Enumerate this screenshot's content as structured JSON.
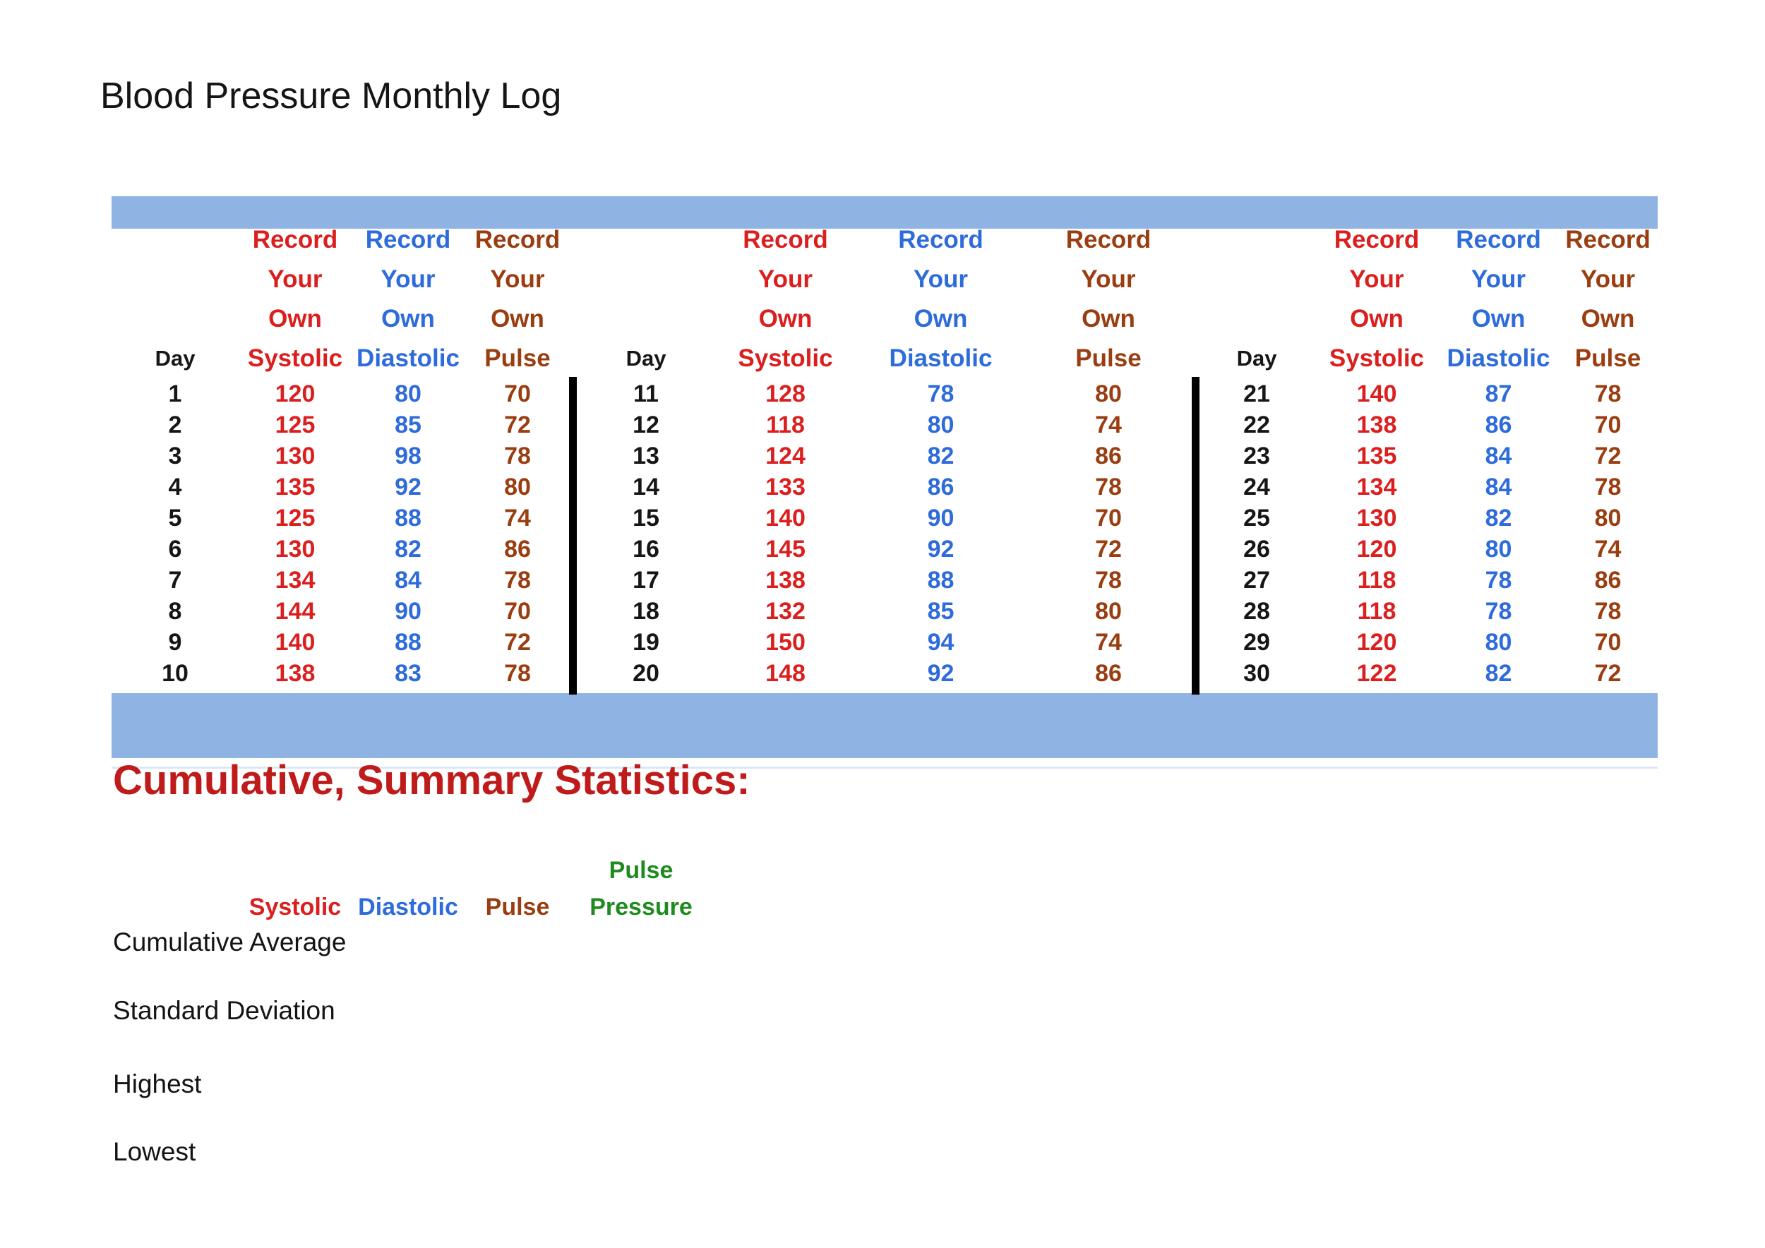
{
  "title": "Blood Pressure Monthly Log",
  "colors": {
    "banner_blue": "#8FB4E3",
    "systolic_red": "#DB1F1F",
    "diastolic_blue": "#2E6BDB",
    "pulse_brown": "#9A3D10",
    "pulse_pressure_green": "#1F8A1F",
    "summary_heading_red": "#C01B1B",
    "divider_black": "#000000"
  },
  "log_table": {
    "day_header": "Day",
    "column_header_lines": {
      "line1": "Record",
      "line2": "Your",
      "line3": "Own"
    },
    "columns": {
      "systolic": "Systolic",
      "diastolic": "Diastolic",
      "pulse": "Pulse"
    },
    "groups": [
      {
        "rows": [
          {
            "day": "1",
            "systolic": "120",
            "diastolic": "80",
            "pulse": "70"
          },
          {
            "day": "2",
            "systolic": "125",
            "diastolic": "85",
            "pulse": "72"
          },
          {
            "day": "3",
            "systolic": "130",
            "diastolic": "98",
            "pulse": "78"
          },
          {
            "day": "4",
            "systolic": "135",
            "diastolic": "92",
            "pulse": "80"
          },
          {
            "day": "5",
            "systolic": "125",
            "diastolic": "88",
            "pulse": "74"
          },
          {
            "day": "6",
            "systolic": "130",
            "diastolic": "82",
            "pulse": "86"
          },
          {
            "day": "7",
            "systolic": "134",
            "diastolic": "84",
            "pulse": "78"
          },
          {
            "day": "8",
            "systolic": "144",
            "diastolic": "90",
            "pulse": "70"
          },
          {
            "day": "9",
            "systolic": "140",
            "diastolic": "88",
            "pulse": "72"
          },
          {
            "day": "10",
            "systolic": "138",
            "diastolic": "83",
            "pulse": "78"
          }
        ]
      },
      {
        "rows": [
          {
            "day": "11",
            "systolic": "128",
            "diastolic": "78",
            "pulse": "80"
          },
          {
            "day": "12",
            "systolic": "118",
            "diastolic": "80",
            "pulse": "74"
          },
          {
            "day": "13",
            "systolic": "124",
            "diastolic": "82",
            "pulse": "86"
          },
          {
            "day": "14",
            "systolic": "133",
            "diastolic": "86",
            "pulse": "78"
          },
          {
            "day": "15",
            "systolic": "140",
            "diastolic": "90",
            "pulse": "70"
          },
          {
            "day": "16",
            "systolic": "145",
            "diastolic": "92",
            "pulse": "72"
          },
          {
            "day": "17",
            "systolic": "138",
            "diastolic": "88",
            "pulse": "78"
          },
          {
            "day": "18",
            "systolic": "132",
            "diastolic": "85",
            "pulse": "80"
          },
          {
            "day": "19",
            "systolic": "150",
            "diastolic": "94",
            "pulse": "74"
          },
          {
            "day": "20",
            "systolic": "148",
            "diastolic": "92",
            "pulse": "86"
          }
        ]
      },
      {
        "rows": [
          {
            "day": "21",
            "systolic": "140",
            "diastolic": "87",
            "pulse": "78"
          },
          {
            "day": "22",
            "systolic": "138",
            "diastolic": "86",
            "pulse": "70"
          },
          {
            "day": "23",
            "systolic": "135",
            "diastolic": "84",
            "pulse": "72"
          },
          {
            "day": "24",
            "systolic": "134",
            "diastolic": "84",
            "pulse": "78"
          },
          {
            "day": "25",
            "systolic": "130",
            "diastolic": "82",
            "pulse": "80"
          },
          {
            "day": "26",
            "systolic": "120",
            "diastolic": "80",
            "pulse": "74"
          },
          {
            "day": "27",
            "systolic": "118",
            "diastolic": "78",
            "pulse": "86"
          },
          {
            "day": "28",
            "systolic": "118",
            "diastolic": "78",
            "pulse": "78"
          },
          {
            "day": "29",
            "systolic": "120",
            "diastolic": "80",
            "pulse": "70"
          },
          {
            "day": "30",
            "systolic": "122",
            "diastolic": "82",
            "pulse": "72"
          }
        ]
      }
    ]
  },
  "summary": {
    "heading": "Cumulative, Summary Statistics:",
    "col_systolic": "Systolic",
    "col_diastolic": "Diastolic",
    "col_pulse": "Pulse",
    "col_pulse_pressure_line1": "Pulse",
    "col_pulse_pressure_line2": "Pressure",
    "row_labels": {
      "average": "Cumulative Average",
      "stddev": "Standard Deviation",
      "highest": "Highest",
      "lowest": "Lowest"
    }
  }
}
